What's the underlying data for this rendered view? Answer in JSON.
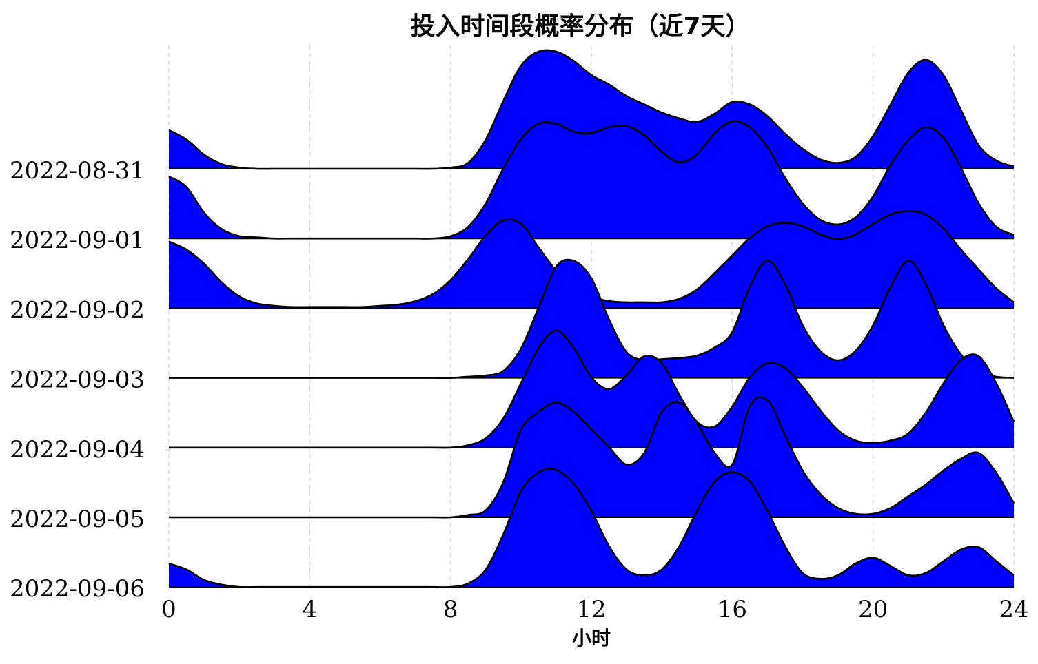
{
  "chart_data": {
    "type": "area",
    "subtype": "ridgeline",
    "title": "投入时间段概率分布（近7天）",
    "xlabel": "小时",
    "ylabel": "",
    "xlim": [
      0,
      24
    ],
    "xticks": [
      0,
      4,
      8,
      12,
      16,
      20,
      24
    ],
    "grid": "vertical dashed",
    "fill_color": "#0000ff",
    "line_color": "#000000",
    "x": [
      0,
      0.5,
      1,
      1.5,
      2,
      2.5,
      3,
      3.5,
      4,
      4.5,
      5,
      5.5,
      6,
      6.5,
      7,
      7.5,
      8,
      8.5,
      9,
      9.5,
      10,
      10.5,
      11,
      11.5,
      12,
      12.5,
      13,
      13.5,
      14,
      14.5,
      15,
      15.5,
      16,
      16.5,
      17,
      17.5,
      18,
      18.5,
      19,
      19.5,
      20,
      20.5,
      21,
      21.5,
      22,
      22.5,
      23,
      23.5,
      24
    ],
    "series": [
      {
        "name": "2022-08-31",
        "values": [
          0.33,
          0.25,
          0.12,
          0.04,
          0.01,
          0,
          0,
          0,
          0,
          0,
          0,
          0,
          0,
          0,
          0,
          0,
          0.01,
          0.05,
          0.25,
          0.58,
          0.88,
          1.0,
          1.0,
          0.92,
          0.8,
          0.72,
          0.62,
          0.55,
          0.48,
          0.43,
          0.4,
          0.47,
          0.57,
          0.55,
          0.45,
          0.3,
          0.17,
          0.08,
          0.05,
          0.1,
          0.28,
          0.55,
          0.82,
          0.93,
          0.8,
          0.5,
          0.2,
          0.07,
          0.02
        ]
      },
      {
        "name": "2022-09-01",
        "values": [
          0.53,
          0.44,
          0.22,
          0.08,
          0.02,
          0.01,
          0,
          0,
          0,
          0,
          0,
          0,
          0,
          0,
          0,
          0,
          0.02,
          0.1,
          0.3,
          0.6,
          0.85,
          0.98,
          0.98,
          0.91,
          0.9,
          0.95,
          0.96,
          0.88,
          0.74,
          0.65,
          0.72,
          0.9,
          1.0,
          0.95,
          0.78,
          0.52,
          0.3,
          0.16,
          0.12,
          0.18,
          0.36,
          0.63,
          0.84,
          0.95,
          0.86,
          0.6,
          0.3,
          0.1,
          0.03
        ]
      },
      {
        "name": "2022-09-02",
        "values": [
          0.57,
          0.5,
          0.38,
          0.22,
          0.1,
          0.04,
          0.02,
          0.01,
          0.01,
          0.01,
          0.01,
          0.01,
          0.02,
          0.03,
          0.06,
          0.12,
          0.24,
          0.42,
          0.62,
          0.75,
          0.72,
          0.52,
          0.32,
          0.18,
          0.1,
          0.06,
          0.05,
          0.05,
          0.05,
          0.08,
          0.16,
          0.3,
          0.45,
          0.6,
          0.7,
          0.73,
          0.7,
          0.63,
          0.59,
          0.63,
          0.72,
          0.8,
          0.83,
          0.8,
          0.68,
          0.5,
          0.33,
          0.17,
          0.05
        ]
      },
      {
        "name": "2022-09-03",
        "values": [
          0,
          0,
          0,
          0,
          0,
          0,
          0,
          0,
          0,
          0,
          0,
          0,
          0,
          0,
          0,
          0,
          0,
          0.01,
          0.02,
          0.06,
          0.25,
          0.6,
          0.95,
          1.0,
          0.85,
          0.5,
          0.22,
          0.15,
          0.16,
          0.17,
          0.19,
          0.26,
          0.39,
          0.78,
          1.0,
          0.8,
          0.45,
          0.23,
          0.15,
          0.23,
          0.45,
          0.78,
          1.0,
          0.8,
          0.45,
          0.2,
          0.05,
          0.01,
          0
        ]
      },
      {
        "name": "2022-09-04",
        "values": [
          0,
          0,
          0,
          0,
          0,
          0,
          0,
          0,
          0,
          0,
          0,
          0,
          0,
          0,
          0,
          0,
          0,
          0.02,
          0.08,
          0.25,
          0.55,
          0.85,
          1.0,
          0.85,
          0.6,
          0.5,
          0.62,
          0.78,
          0.72,
          0.45,
          0.22,
          0.18,
          0.35,
          0.6,
          0.72,
          0.68,
          0.52,
          0.32,
          0.15,
          0.06,
          0.04,
          0.06,
          0.12,
          0.3,
          0.55,
          0.75,
          0.78,
          0.55,
          0.22
        ]
      },
      {
        "name": "2022-09-05",
        "values": [
          0,
          0,
          0,
          0,
          0,
          0,
          0,
          0,
          0,
          0,
          0,
          0,
          0,
          0,
          0,
          0,
          0,
          0.02,
          0.06,
          0.3,
          0.75,
          0.9,
          0.98,
          0.9,
          0.75,
          0.6,
          0.45,
          0.55,
          0.9,
          0.98,
          0.8,
          0.55,
          0.45,
          0.95,
          1.0,
          0.7,
          0.4,
          0.2,
          0.08,
          0.03,
          0.03,
          0.08,
          0.18,
          0.28,
          0.4,
          0.5,
          0.55,
          0.38,
          0.12
        ]
      },
      {
        "name": "2022-09-06",
        "values": [
          0.2,
          0.15,
          0.06,
          0.02,
          0,
          0,
          0,
          0,
          0,
          0,
          0,
          0,
          0,
          0,
          0,
          0,
          0,
          0.03,
          0.15,
          0.45,
          0.82,
          0.98,
          1.0,
          0.88,
          0.65,
          0.35,
          0.15,
          0.1,
          0.15,
          0.35,
          0.65,
          0.9,
          0.98,
          0.9,
          0.65,
          0.35,
          0.12,
          0.07,
          0.1,
          0.2,
          0.25,
          0.18,
          0.1,
          0.12,
          0.22,
          0.32,
          0.34,
          0.22,
          0.1
        ]
      }
    ]
  }
}
